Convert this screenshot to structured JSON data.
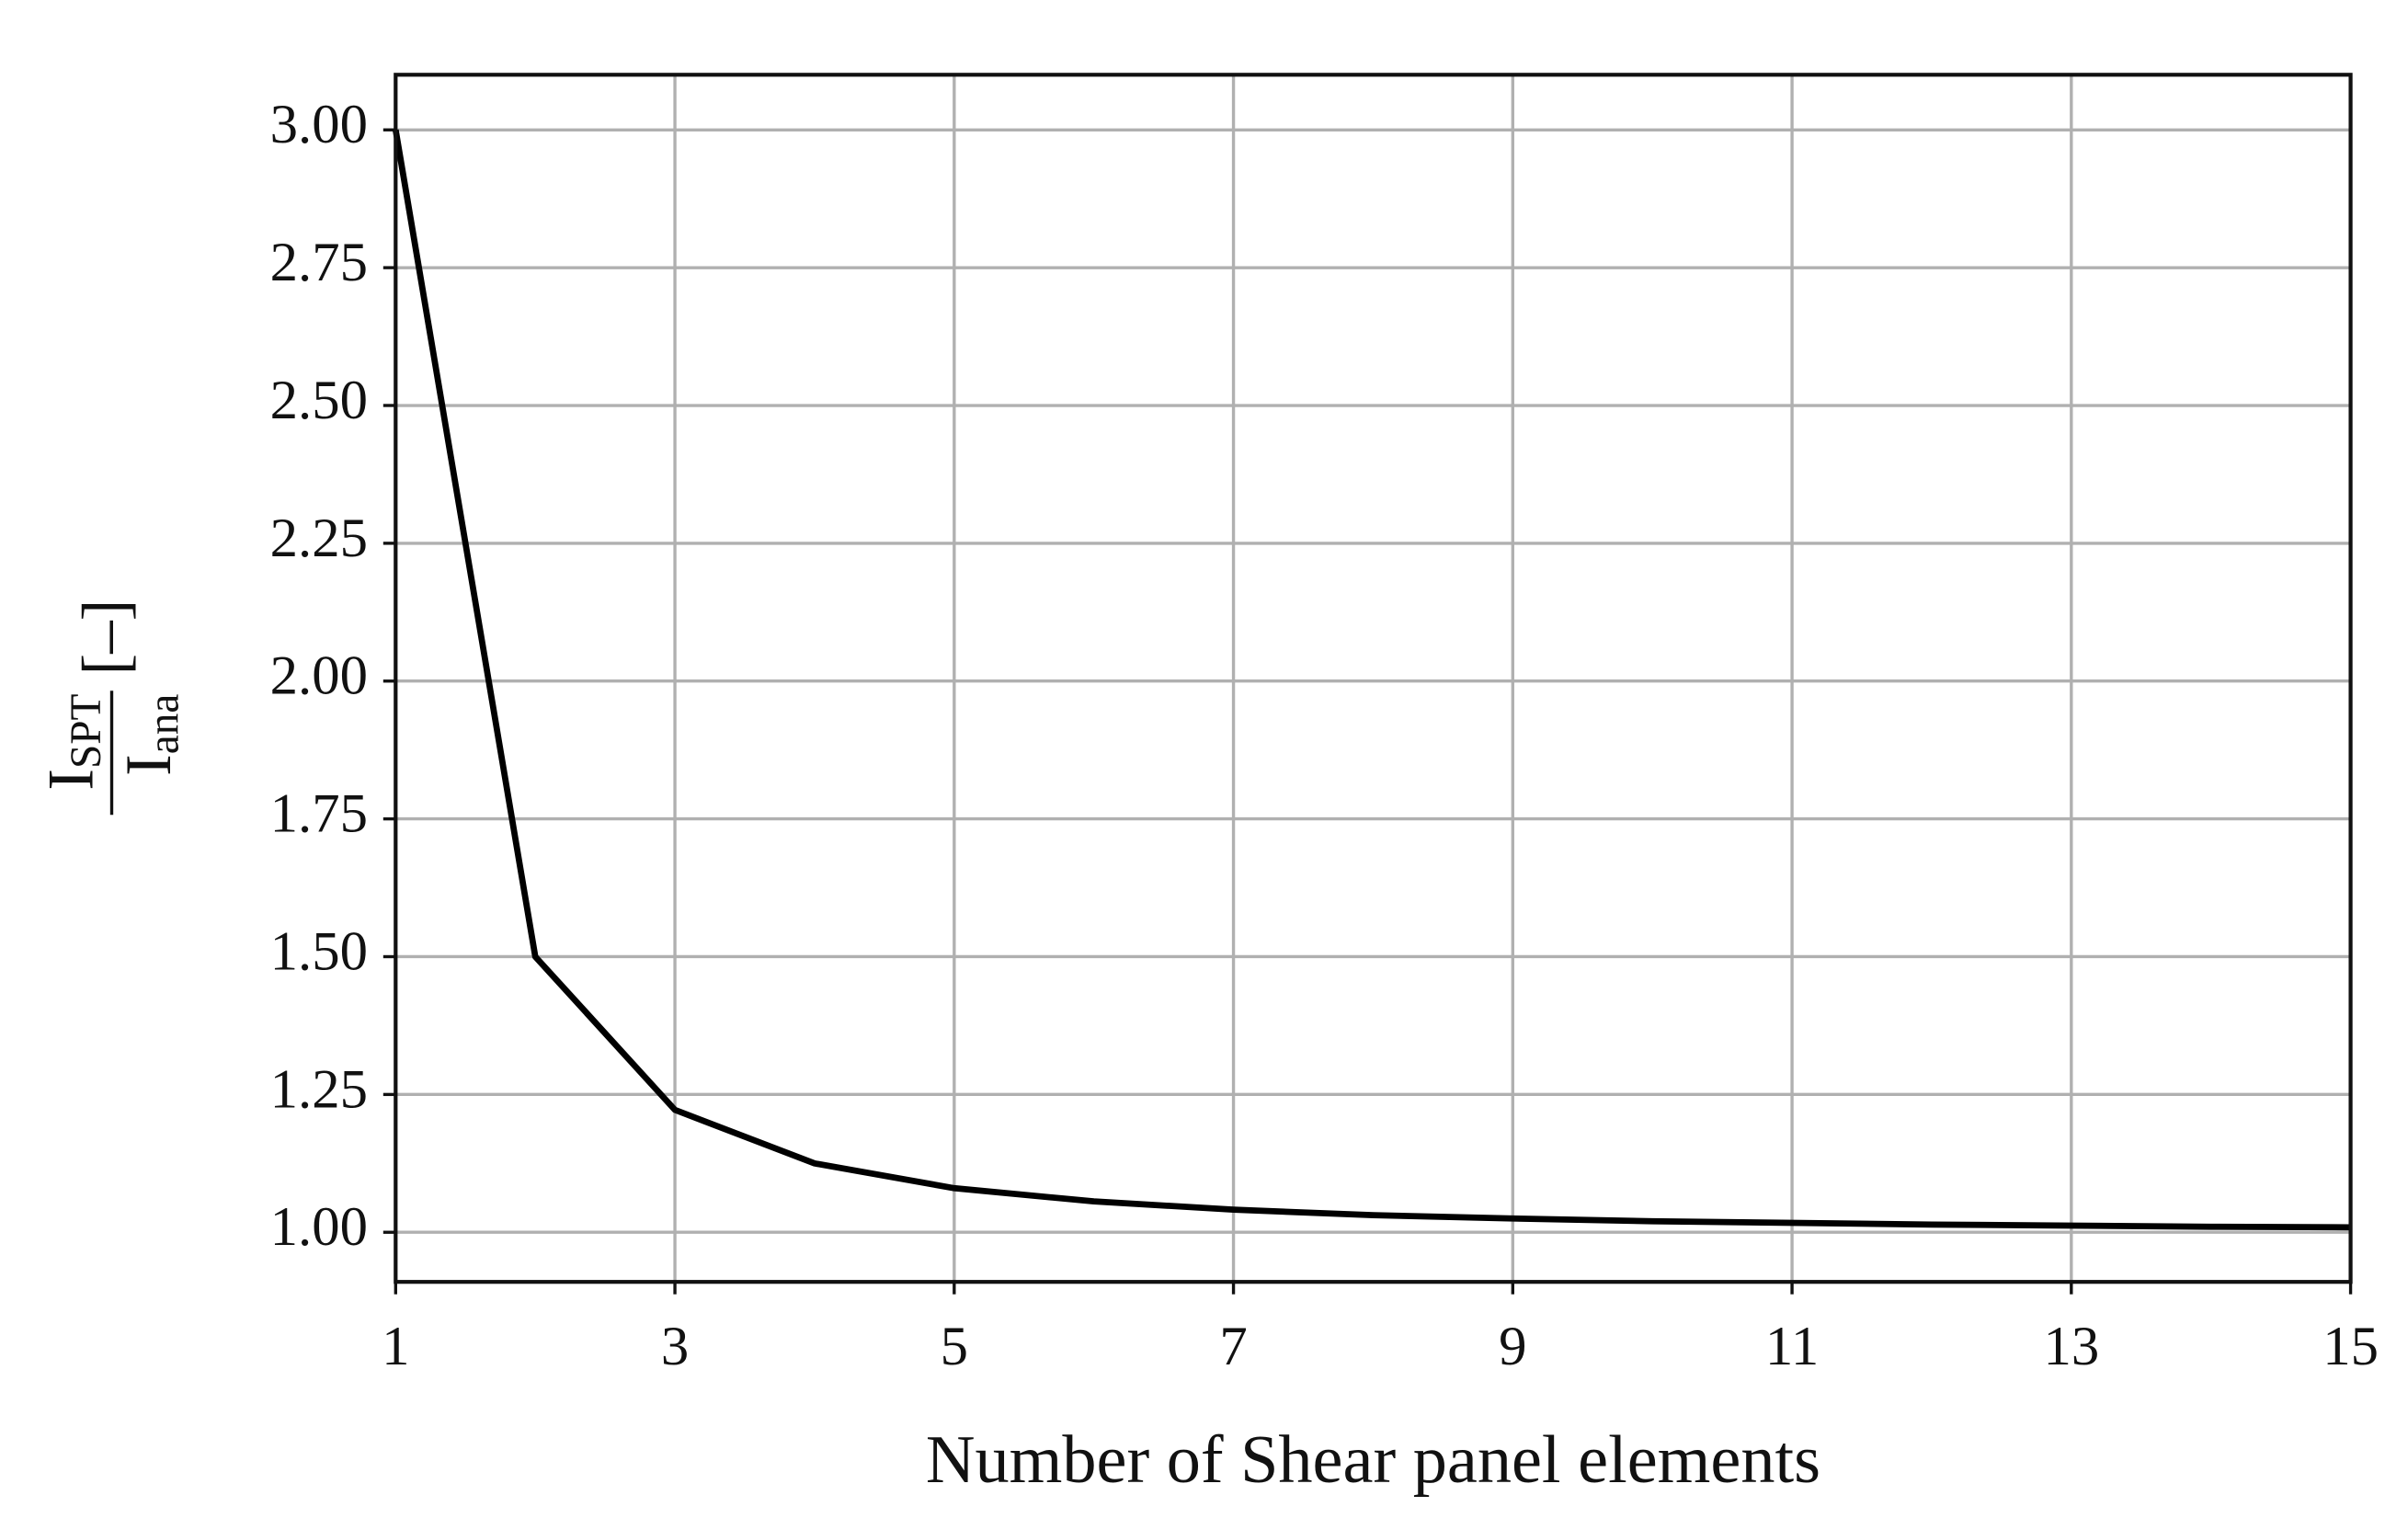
{
  "chart_data": {
    "type": "line",
    "x_label": "Number of Shear panel elements",
    "y_label": {
      "numerator": "I",
      "numerator_sub": "SPT",
      "denominator": "I",
      "denominator_sub": "ana",
      "unit": "[–]"
    },
    "x": [
      1,
      2,
      3,
      4,
      5,
      6,
      7,
      8,
      9,
      10,
      11,
      12,
      13,
      14,
      15
    ],
    "series": [
      {
        "color": "#000000",
        "values": [
          3.0,
          1.5,
          1.222,
          1.125,
          1.08,
          1.056,
          1.041,
          1.031,
          1.025,
          1.02,
          1.017,
          1.014,
          1.012,
          1.01,
          1.009
        ]
      }
    ],
    "xlim": [
      1,
      15
    ],
    "ylim": [
      0.91,
      3.1
    ],
    "xticks": [
      1,
      3,
      5,
      7,
      9,
      11,
      13,
      15
    ],
    "yticks": [
      {
        "value": 1,
        "label": "1.00"
      },
      {
        "value": 1.25,
        "label": "1.25"
      },
      {
        "value": 1.5,
        "label": "1.50"
      },
      {
        "value": 1.75,
        "label": "1.75"
      },
      {
        "value": 2,
        "label": "2.00"
      },
      {
        "value": 2.25,
        "label": "2.25"
      },
      {
        "value": 2.5,
        "label": "2.50"
      },
      {
        "value": 2.75,
        "label": "2.75"
      },
      {
        "value": 3,
        "label": "3.00"
      }
    ],
    "grid": true
  }
}
